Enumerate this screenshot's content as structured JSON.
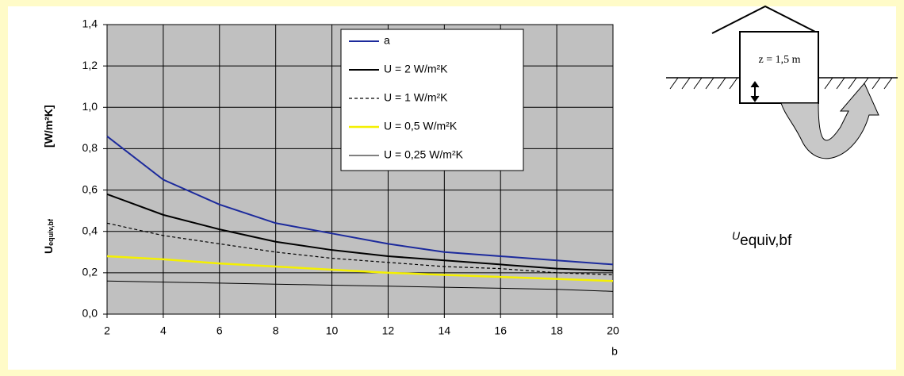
{
  "chart_data": {
    "type": "line",
    "y_label": "U",
    "y_label_sub": "equiv,bf",
    "y_label_unit": "[W/m²K]",
    "x_label": "b",
    "x": [
      2,
      4,
      6,
      8,
      10,
      12,
      14,
      16,
      18,
      20
    ],
    "xlim": [
      2,
      20
    ],
    "xticks": [
      2,
      4,
      6,
      8,
      10,
      12,
      14,
      16,
      18,
      20
    ],
    "ylim": [
      0,
      1.4
    ],
    "yticks": [
      {
        "value": 0,
        "label": "0,0"
      },
      {
        "value": 0.2,
        "label": "0,2"
      },
      {
        "value": 0.4,
        "label": "0,4"
      },
      {
        "value": 0.6,
        "label": "0,6"
      },
      {
        "value": 0.8,
        "label": "0,8"
      },
      {
        "value": 1.0,
        "label": "1,0"
      },
      {
        "value": 1.2,
        "label": "1,2"
      },
      {
        "value": 1.4,
        "label": "1,4"
      }
    ],
    "grid": true,
    "series": [
      {
        "name": "a",
        "color": "#1c2a9c",
        "width": 2,
        "dash": false,
        "values": [
          0.86,
          0.65,
          0.53,
          0.44,
          0.39,
          0.34,
          0.3,
          0.28,
          0.26,
          0.24
        ]
      },
      {
        "name": "U = 2 W/m²K",
        "color": "#000000",
        "width": 2,
        "dash": false,
        "values": [
          0.58,
          0.48,
          0.41,
          0.35,
          0.31,
          0.28,
          0.26,
          0.24,
          0.22,
          0.21
        ]
      },
      {
        "name": "U = 1 W/m²K",
        "color": "#000000",
        "width": 1.2,
        "dash": true,
        "values": [
          0.44,
          0.38,
          0.34,
          0.3,
          0.27,
          0.25,
          0.23,
          0.22,
          0.2,
          0.19
        ]
      },
      {
        "name": "U = 0,5 W/m²K",
        "color": "#f4f000",
        "width": 2.5,
        "dash": false,
        "values": [
          0.28,
          0.265,
          0.245,
          0.23,
          0.215,
          0.2,
          0.19,
          0.18,
          0.17,
          0.16
        ]
      },
      {
        "name": "U = 0,25 W/m²K",
        "color": "#000000",
        "width": 1,
        "dash": false,
        "values": [
          0.16,
          0.155,
          0.15,
          0.145,
          0.14,
          0.135,
          0.13,
          0.125,
          0.12,
          0.11
        ]
      }
    ]
  },
  "diagram": {
    "depth_label": "z = 1,5 m",
    "symbol": "U",
    "symbol_sub": "equiv,bf"
  }
}
